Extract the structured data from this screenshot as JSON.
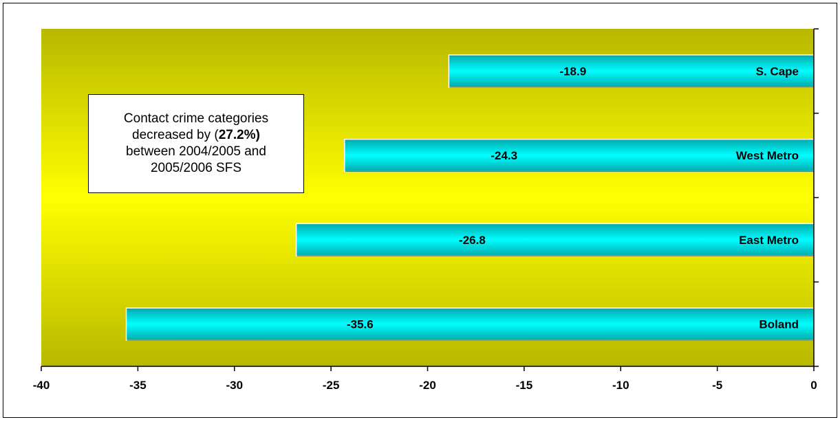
{
  "chart_data": {
    "type": "bar",
    "orientation": "horizontal",
    "categories": [
      "S. Cape",
      "West Metro",
      "East Metro",
      "Boland"
    ],
    "values": [
      -18.9,
      -24.3,
      -26.8,
      -35.6
    ],
    "data_labels": [
      "-18.9",
      "-24.3",
      "-26.8",
      "-35.6"
    ],
    "x_ticks": [
      "-40",
      "-35",
      "-30",
      "-25",
      "-20",
      "-15",
      "-10",
      "-5",
      "0"
    ],
    "xlim": [
      -40,
      0
    ],
    "grid": false,
    "legend": "none",
    "colors": {
      "bar": "#00e6e6",
      "bar_light": "#8ff5f5",
      "bar_dark": "#00aeb4",
      "plot_bg_edge": "#b3b300",
      "plot_bg_center": "#ffff00"
    }
  },
  "annotation": {
    "line1": "Contact crime categories",
    "line2_pre": "decreased by (",
    "line2_bold": "27.2%)",
    "line3": "between 2004/2005 and",
    "line4": "2005/2006 SFS"
  }
}
